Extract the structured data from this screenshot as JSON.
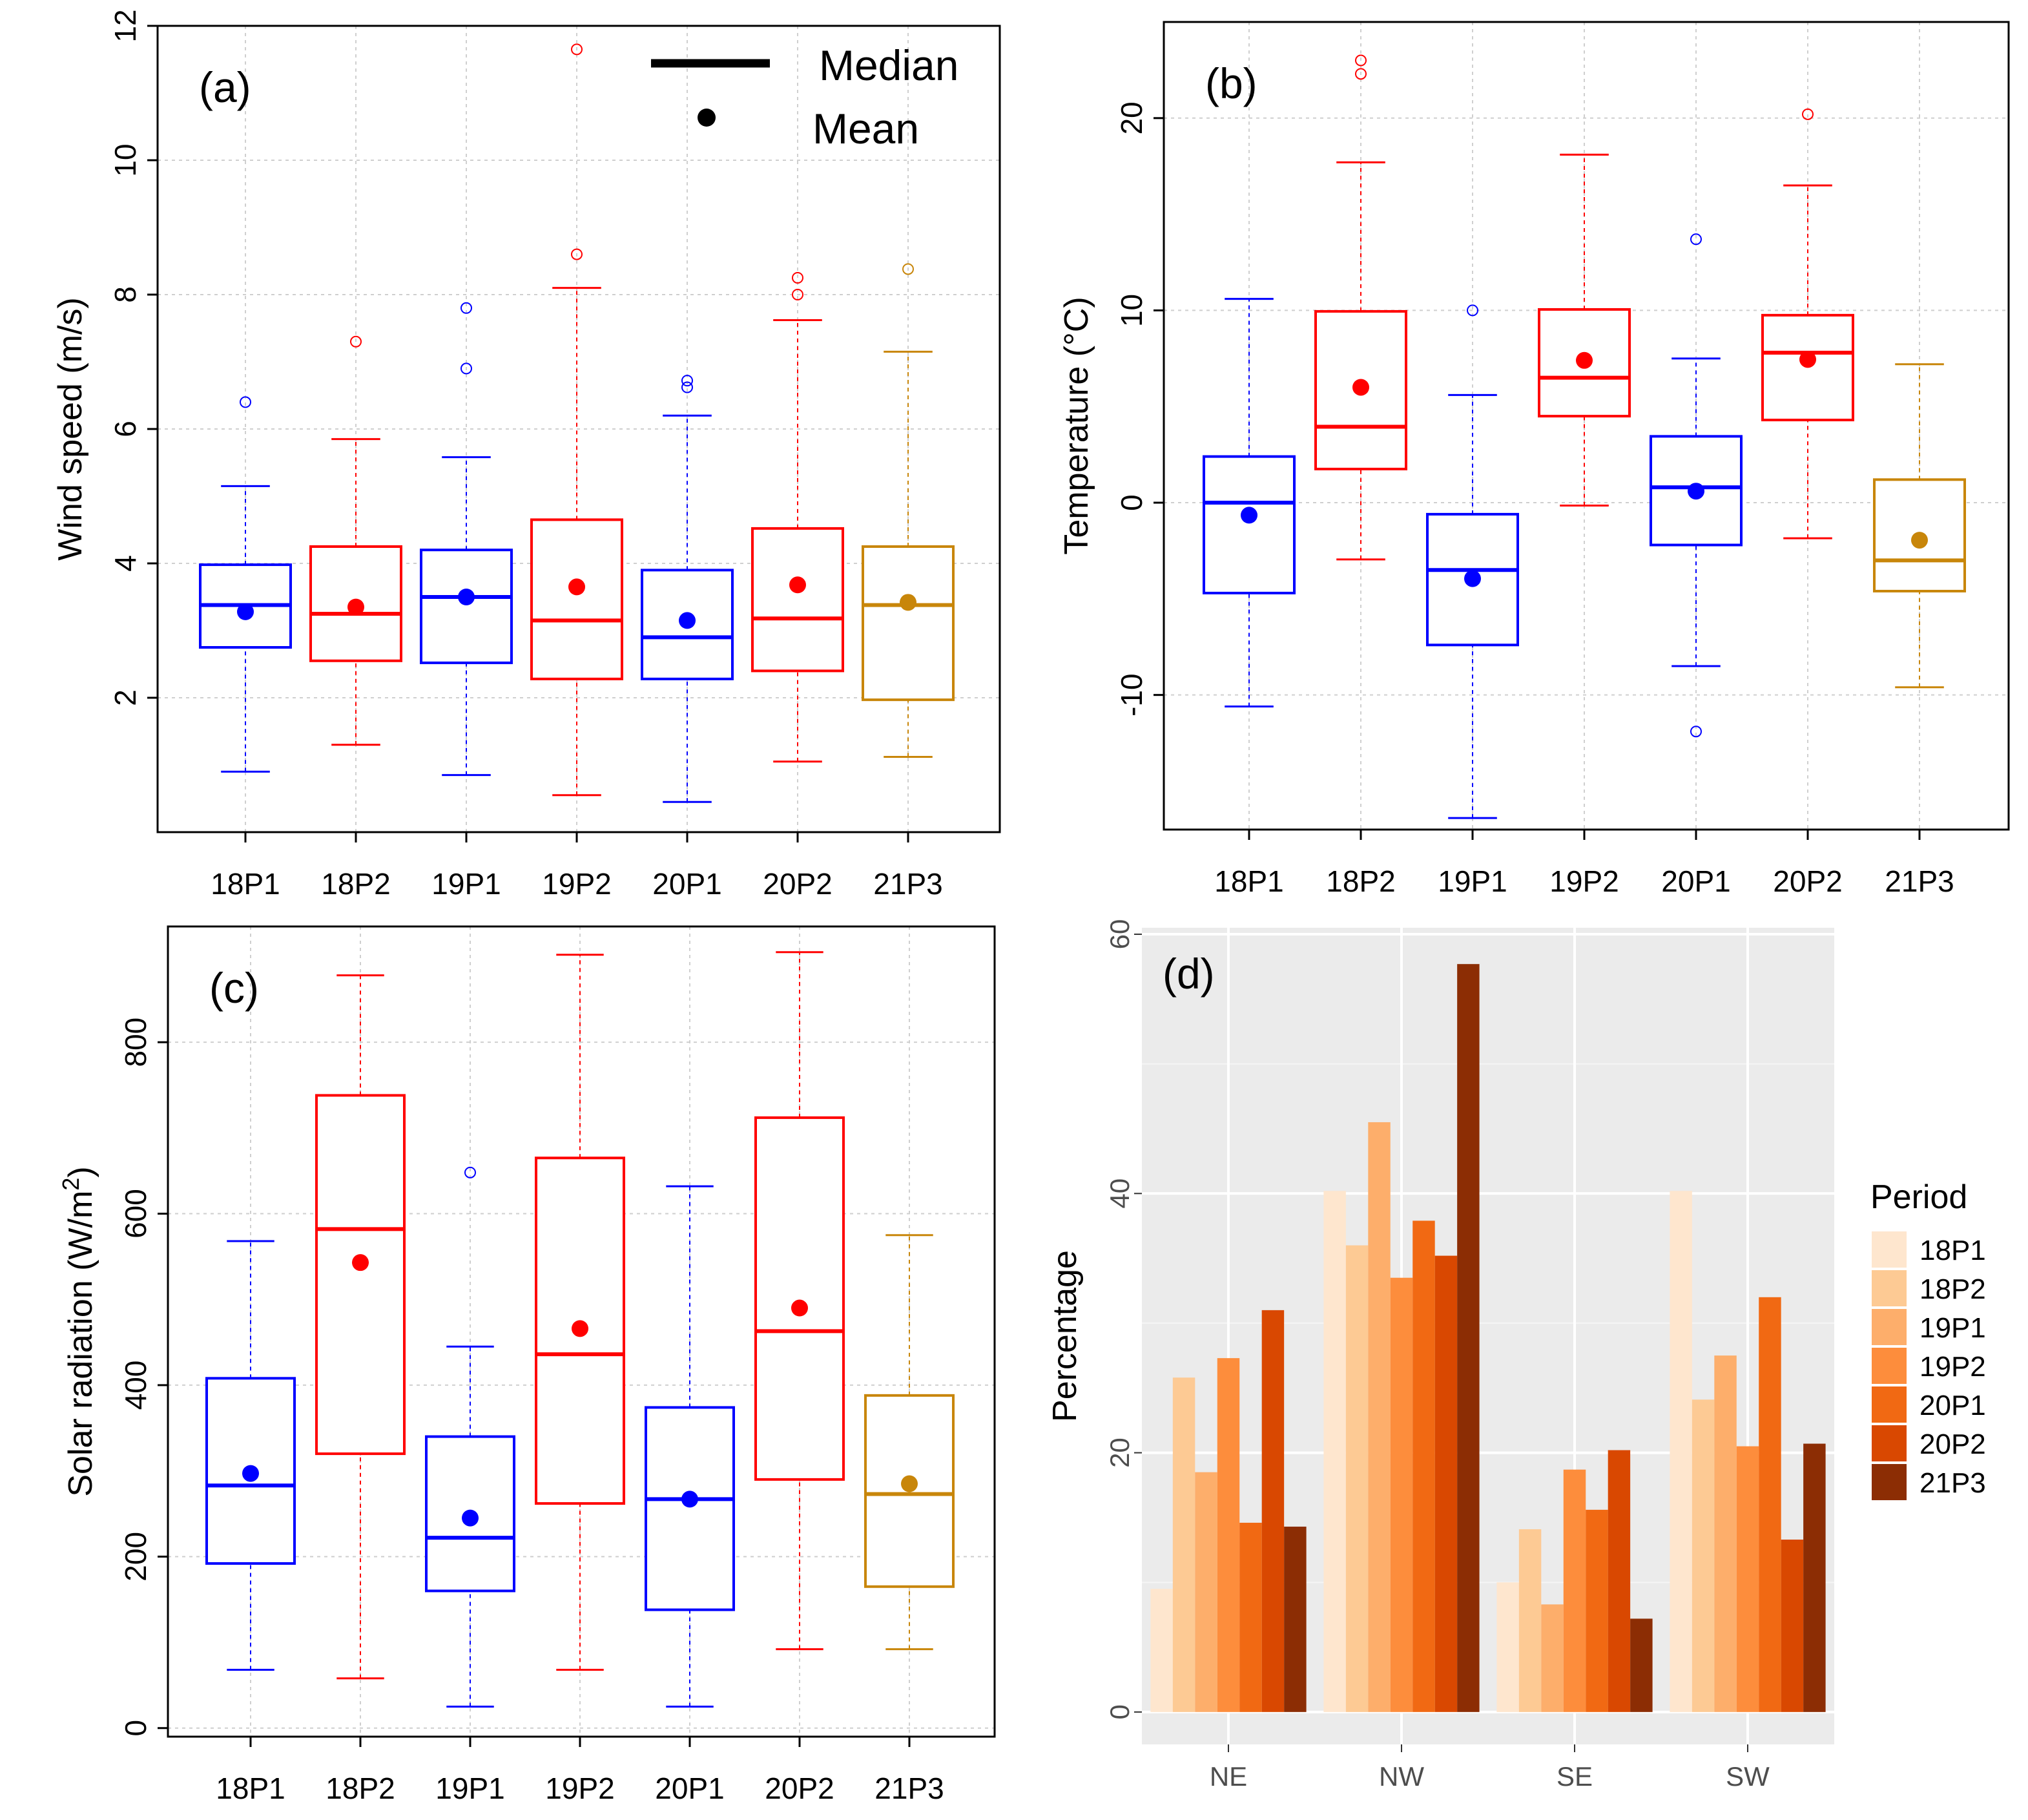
{
  "colors": {
    "p1": "#0000FF",
    "p2": "#FF0000",
    "p3": "#C8860A"
  },
  "chart_data": [
    {
      "type": "box",
      "panel": "(a)",
      "ylabel": "Wind speed (m/s)",
      "ylim": [
        0,
        12
      ],
      "yticks": [
        2,
        4,
        6,
        8,
        10,
        12
      ],
      "categories": [
        "18P1",
        "18P2",
        "19P1",
        "19P2",
        "20P1",
        "20P2",
        "21P3"
      ],
      "groups": [
        "p1",
        "p2",
        "p1",
        "p2",
        "p1",
        "p2",
        "p3"
      ],
      "boxes": [
        {
          "whisker_low": 0.9,
          "q1": 2.75,
          "median": 3.38,
          "q3": 3.98,
          "whisker_high": 5.15,
          "mean": 3.28,
          "outliers": [
            6.4
          ]
        },
        {
          "whisker_low": 1.3,
          "q1": 2.55,
          "median": 3.25,
          "q3": 4.25,
          "whisker_high": 5.85,
          "mean": 3.35,
          "outliers": [
            7.3
          ]
        },
        {
          "whisker_low": 0.85,
          "q1": 2.52,
          "median": 3.5,
          "q3": 4.2,
          "whisker_high": 5.58,
          "mean": 3.5,
          "outliers": [
            6.9,
            7.8
          ]
        },
        {
          "whisker_low": 0.55,
          "q1": 2.28,
          "median": 3.15,
          "q3": 4.65,
          "whisker_high": 8.1,
          "mean": 3.65,
          "outliers": [
            8.6,
            11.65
          ]
        },
        {
          "whisker_low": 0.45,
          "q1": 2.28,
          "median": 2.9,
          "q3": 3.9,
          "whisker_high": 6.2,
          "mean": 3.15,
          "outliers": [
            6.62,
            6.72
          ]
        },
        {
          "whisker_low": 1.05,
          "q1": 2.4,
          "median": 3.18,
          "q3": 4.52,
          "whisker_high": 7.62,
          "mean": 3.68,
          "outliers": [
            8.0,
            8.25
          ]
        },
        {
          "whisker_low": 1.12,
          "q1": 1.97,
          "median": 3.38,
          "q3": 4.25,
          "whisker_high": 7.15,
          "mean": 3.42,
          "outliers": [
            8.38
          ]
        }
      ],
      "legend": [
        {
          "kind": "line",
          "label": "Median"
        },
        {
          "kind": "dot",
          "label": "Mean"
        }
      ]
    },
    {
      "type": "box",
      "panel": "(b)",
      "ylabel": "Temperature (°C)",
      "ylim": [
        -17,
        25
      ],
      "yticks": [
        -10,
        0,
        10,
        20
      ],
      "categories": [
        "18P1",
        "18P2",
        "19P1",
        "19P2",
        "20P1",
        "20P2",
        "21P3"
      ],
      "groups": [
        "p1",
        "p2",
        "p1",
        "p2",
        "p1",
        "p2",
        "p3"
      ],
      "boxes": [
        {
          "whisker_low": -10.6,
          "q1": -4.7,
          "median": 0.0,
          "q3": 2.4,
          "whisker_high": 10.6,
          "mean": -0.65,
          "outliers": []
        },
        {
          "whisker_low": -2.95,
          "q1": 1.75,
          "median": 3.95,
          "q3": 9.95,
          "whisker_high": 17.7,
          "mean": 6.0,
          "outliers": [
            22.3,
            23.0
          ]
        },
        {
          "whisker_low": -16.4,
          "q1": -7.4,
          "median": -3.5,
          "q3": -0.6,
          "whisker_high": 5.6,
          "mean": -3.95,
          "outliers": [
            10.0
          ]
        },
        {
          "whisker_low": -0.15,
          "q1": 4.5,
          "median": 6.5,
          "q3": 10.05,
          "whisker_high": 18.1,
          "mean": 7.4,
          "outliers": []
        },
        {
          "whisker_low": -8.5,
          "q1": -2.2,
          "median": 0.8,
          "q3": 3.45,
          "whisker_high": 7.5,
          "mean": 0.6,
          "outliers": [
            -11.9,
            13.7
          ]
        },
        {
          "whisker_low": -1.85,
          "q1": 4.3,
          "median": 7.8,
          "q3": 9.75,
          "whisker_high": 16.5,
          "mean": 7.45,
          "outliers": [
            20.2
          ]
        },
        {
          "whisker_low": -9.6,
          "q1": -4.6,
          "median": -3.0,
          "q3": 1.2,
          "whisker_high": 7.2,
          "mean": -1.95,
          "outliers": []
        }
      ]
    },
    {
      "type": "box",
      "panel": "(c)",
      "ylabel_main": "Solar radiation (W/m",
      "ylabel_sup": "2",
      "ylabel_end": ")",
      "ylim": [
        -10,
        935
      ],
      "yticks": [
        0,
        200,
        400,
        600,
        800
      ],
      "categories": [
        "18P1",
        "18P2",
        "19P1",
        "19P2",
        "20P1",
        "20P2",
        "21P3"
      ],
      "groups": [
        "p1",
        "p2",
        "p1",
        "p2",
        "p1",
        "p2",
        "p3"
      ],
      "boxes": [
        {
          "whisker_low": 68,
          "q1": 192,
          "median": 283,
          "q3": 408,
          "whisker_high": 568,
          "mean": 297,
          "outliers": []
        },
        {
          "whisker_low": 58,
          "q1": 320,
          "median": 582,
          "q3": 738,
          "whisker_high": 878,
          "mean": 543,
          "outliers": []
        },
        {
          "whisker_low": 25,
          "q1": 160,
          "median": 222,
          "q3": 340,
          "whisker_high": 445,
          "mean": 245,
          "outliers": [
            648
          ]
        },
        {
          "whisker_low": 68,
          "q1": 262,
          "median": 436,
          "q3": 665,
          "whisker_high": 902,
          "mean": 466,
          "outliers": []
        },
        {
          "whisker_low": 25,
          "q1": 138,
          "median": 267,
          "q3": 374,
          "whisker_high": 632,
          "mean": 267,
          "outliers": []
        },
        {
          "whisker_low": 92,
          "q1": 290,
          "median": 463,
          "q3": 712,
          "whisker_high": 905,
          "mean": 490,
          "outliers": []
        },
        {
          "whisker_low": 92,
          "q1": 165,
          "median": 273,
          "q3": 388,
          "whisker_high": 575,
          "mean": 285,
          "outliers": []
        }
      ]
    },
    {
      "type": "bar",
      "panel": "(d)",
      "ylabel": "Percentage",
      "ylim": [
        -2.5,
        60.5
      ],
      "yticks": [
        0,
        20,
        40,
        60
      ],
      "categories": [
        "NE",
        "NW",
        "SE",
        "SW"
      ],
      "legend_title": "Period",
      "series": [
        {
          "name": "18P1",
          "color": "#FEE6CE",
          "values": [
            9.5,
            40.2,
            10.0,
            40.2
          ]
        },
        {
          "name": "18P2",
          "color": "#FDCA94",
          "values": [
            25.8,
            36.0,
            14.1,
            24.1
          ]
        },
        {
          "name": "19P1",
          "color": "#FDAE6B",
          "values": [
            18.5,
            45.5,
            8.3,
            27.5
          ]
        },
        {
          "name": "19P2",
          "color": "#FD8D3C",
          "values": [
            27.3,
            33.5,
            18.7,
            20.5
          ]
        },
        {
          "name": "20P1",
          "color": "#F16913",
          "values": [
            14.6,
            37.9,
            15.6,
            32.0
          ]
        },
        {
          "name": "20P2",
          "color": "#D94801",
          "values": [
            31.0,
            35.2,
            20.2,
            13.3
          ]
        },
        {
          "name": "21P3",
          "color": "#8C2D04",
          "values": [
            14.3,
            57.7,
            7.2,
            20.7
          ]
        }
      ]
    }
  ]
}
